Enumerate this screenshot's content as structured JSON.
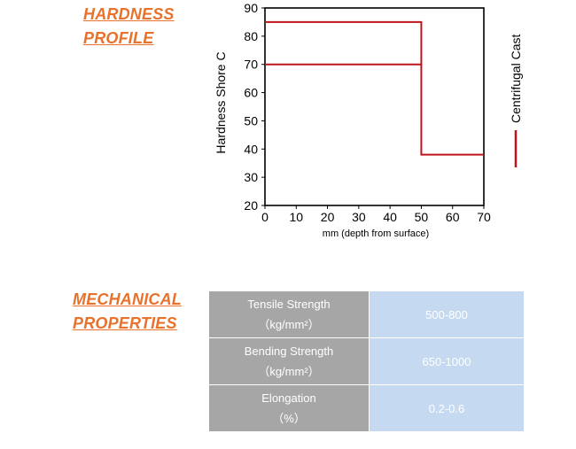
{
  "hardness_section": {
    "title_line1": "HARDNESS",
    "title_line2": "PROFILE"
  },
  "mechanical_section": {
    "title_line1": "MECHANICAL",
    "title_line2": "PROPERTIES"
  },
  "colors": {
    "accent_orange": "#e8722c",
    "series_red": "#c0141c",
    "table_label_bg": "#a6a6a6",
    "table_value_bg": "#c5d9f1"
  },
  "chart_data": {
    "type": "line",
    "ylabel": "Hardness Shore C",
    "xlabel": "mm (depth from surface)",
    "xlim": [
      0,
      70
    ],
    "ylim": [
      20,
      90
    ],
    "xticks": [
      0,
      10,
      20,
      30,
      40,
      50,
      60,
      70
    ],
    "yticks": [
      20,
      30,
      40,
      50,
      60,
      70,
      80,
      90
    ],
    "grid": false,
    "legend_position": "right (vertical)",
    "series": [
      {
        "name": "Centrifugal Cast",
        "color": "#c0141c",
        "lines": [
          {
            "x": [
              0,
              50,
              50,
              70
            ],
            "y": [
              85,
              85,
              38,
              38
            ]
          },
          {
            "x": [
              0,
              50
            ],
            "y": [
              70,
              70
            ]
          }
        ]
      }
    ]
  },
  "properties": [
    {
      "name": "Tensile Strength",
      "unit": "（kg/mm²）",
      "value": "500-800"
    },
    {
      "name": "Bending Strength",
      "unit": "（kg/mm²）",
      "value": "650-1000"
    },
    {
      "name": "Elongation",
      "unit": "（%）",
      "value": "0.2-0.6"
    }
  ]
}
